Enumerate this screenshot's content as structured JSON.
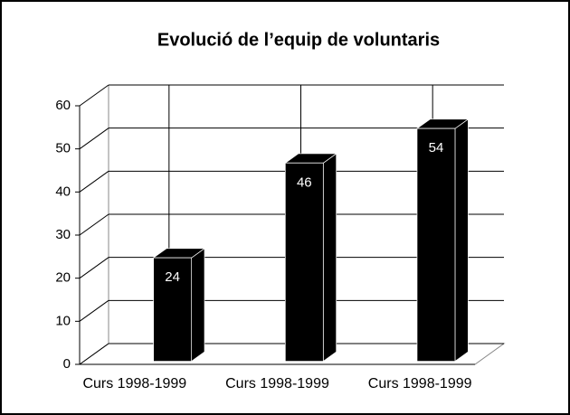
{
  "chart_data": {
    "type": "bar3d",
    "title": "Evolució de l’equip de voluntaris",
    "categories": [
      "Curs 1998-1999",
      "Curs 1998-1999",
      "Curs 1998-1999"
    ],
    "values": [
      24,
      46,
      54
    ],
    "color": "#000000",
    "ylim": [
      0,
      60
    ],
    "yticks": [
      0,
      10,
      20,
      30,
      40,
      50,
      60
    ],
    "grid": true
  }
}
